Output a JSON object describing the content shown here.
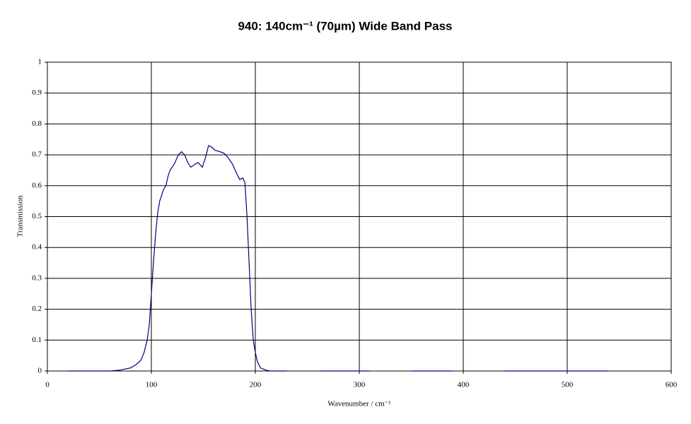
{
  "chart_data": {
    "type": "line",
    "title": "940: 140cm⁻¹ (70µm) Wide Band Pass",
    "x_label": "Wavenumber / cm⁻¹",
    "y_label": "Transmission",
    "xlim": [
      0,
      600
    ],
    "xticks": [
      0,
      100,
      200,
      300,
      400,
      500,
      600
    ],
    "ylim": [
      0,
      1
    ],
    "yticks": [
      0,
      0.1,
      0.2,
      0.3,
      0.4,
      0.5,
      0.6,
      0.7,
      0.8,
      0.9,
      1
    ],
    "grid": true,
    "x": [
      20,
      40,
      60,
      70,
      80,
      85,
      90,
      93,
      96,
      98,
      100,
      102,
      104,
      106,
      108,
      110,
      112,
      114,
      116,
      118,
      122,
      126,
      129,
      132,
      135,
      138,
      142,
      145,
      149,
      152,
      155,
      158,
      161,
      166,
      170,
      174,
      178,
      182,
      185,
      188,
      190,
      192,
      194,
      196,
      198,
      200,
      202,
      205,
      210,
      215,
      230,
      240,
      263,
      310,
      330,
      350,
      390,
      420,
      440,
      540
    ],
    "series": [
      {
        "name": "Transmission",
        "color": "#000080",
        "values": [
          0,
          0,
          0,
          0.003,
          0.01,
          0.02,
          0.035,
          0.06,
          0.1,
          0.15,
          0.25,
          0.35,
          0.44,
          0.51,
          0.55,
          0.57,
          0.59,
          0.6,
          0.63,
          0.65,
          0.67,
          0.7,
          0.71,
          0.7,
          0.675,
          0.66,
          0.67,
          0.675,
          0.66,
          0.69,
          0.73,
          0.725,
          0.715,
          0.71,
          0.705,
          0.69,
          0.67,
          0.64,
          0.62,
          0.625,
          0.61,
          0.5,
          0.35,
          0.2,
          0.1,
          0.06,
          0.03,
          0.01,
          0.003,
          0,
          0,
          null,
          0,
          0,
          null,
          0,
          0,
          null,
          0,
          0
        ]
      }
    ]
  }
}
